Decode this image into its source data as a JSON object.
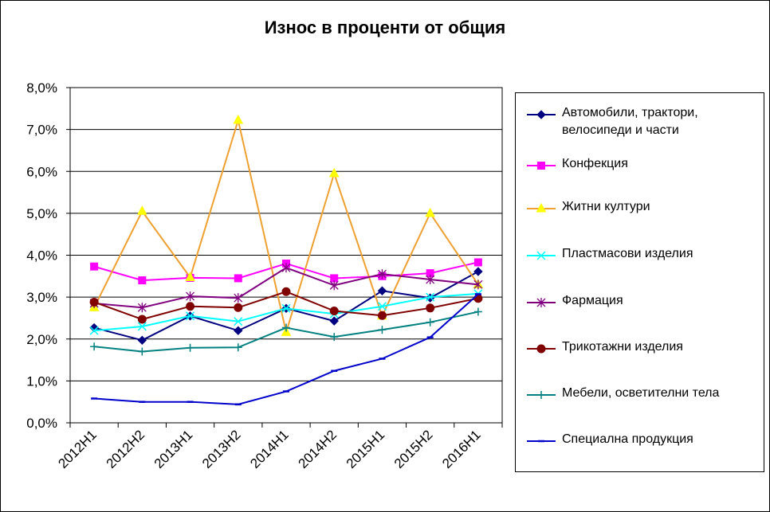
{
  "chart_data": {
    "type": "line",
    "title": "Износ в проценти от общия",
    "categories": [
      "2012H1",
      "2012H2",
      "2013H1",
      "2013H2",
      "2014H1",
      "2014H2",
      "2015H1",
      "2015H2",
      "2016H1"
    ],
    "ylim": [
      0,
      8
    ],
    "y_ticks": [
      "0,0%",
      "1,0%",
      "2,0%",
      "3,0%",
      "4,0%",
      "5,0%",
      "6,0%",
      "7,0%",
      "8,0%"
    ],
    "grid": true,
    "legend_position": "right",
    "series": [
      {
        "name": "Автомобили, трактори, велосипеди и части",
        "color": "#000080",
        "marker": "diamond",
        "values": [
          2.27,
          1.97,
          2.55,
          2.2,
          2.73,
          2.43,
          3.15,
          2.98,
          3.61
        ]
      },
      {
        "name": "Конфекция",
        "color": "#ff00ff",
        "marker": "square",
        "values": [
          3.73,
          3.4,
          3.46,
          3.45,
          3.8,
          3.45,
          3.5,
          3.57,
          3.83
        ]
      },
      {
        "name": "Житни култури",
        "color": "#f0a030",
        "marker": "triangle",
        "marker_color": "#ffff00",
        "values": [
          2.75,
          5.05,
          3.47,
          7.22,
          2.16,
          5.95,
          2.55,
          5.0,
          3.3
        ]
      },
      {
        "name": "Пластмасови изделия",
        "color": "#00ffff",
        "marker": "x",
        "values": [
          2.2,
          2.3,
          2.55,
          2.42,
          2.73,
          2.6,
          2.78,
          3.0,
          3.08
        ]
      },
      {
        "name": "Фармация",
        "color": "#800080",
        "marker": "star",
        "values": [
          2.85,
          2.75,
          3.02,
          2.98,
          3.7,
          3.28,
          3.55,
          3.42,
          3.3
        ]
      },
      {
        "name": "Трикотажни изделия",
        "color": "#800000",
        "marker": "circle",
        "values": [
          2.88,
          2.47,
          2.78,
          2.75,
          3.13,
          2.67,
          2.56,
          2.74,
          2.97
        ]
      },
      {
        "name": "Мебели, осветителни тела",
        "color": "#008080",
        "marker": "plus",
        "values": [
          1.82,
          1.7,
          1.79,
          1.8,
          2.27,
          2.05,
          2.22,
          2.4,
          2.65
        ]
      },
      {
        "name": "Специална продукция",
        "color": "#0000cc",
        "marker": "dash",
        "values": [
          0.58,
          0.5,
          0.5,
          0.44,
          0.75,
          1.24,
          1.53,
          2.04,
          3.07
        ]
      }
    ]
  }
}
